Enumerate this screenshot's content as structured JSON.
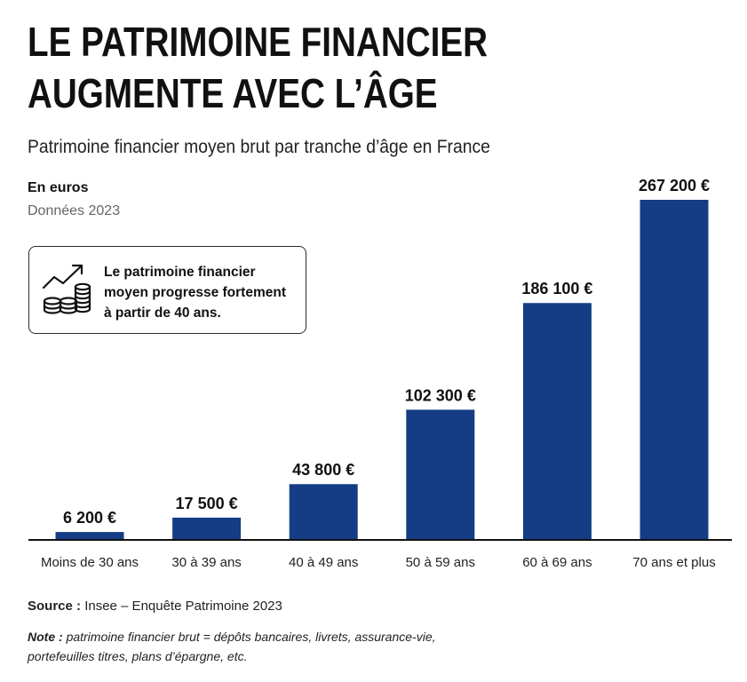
{
  "header": {
    "title_line1": "LE PATRIMOINE FINANCIER",
    "title_line2": "AUGMENTE AVEC L’ÂGE",
    "subtitle": "Patrimoine financier moyen brut par tranche d’âge en France",
    "unit": "En euros",
    "year_note": "Données 2023"
  },
  "callout": {
    "icon": "growth-chart-coins-icon",
    "line1": "Le patrimoine financier",
    "line2": "moyen progresse fortement",
    "line3": "à partir de 40 ans."
  },
  "chart_data": {
    "type": "bar",
    "categories": [
      "Moins de 30 ans",
      "30 à 39 ans",
      "40 à 49 ans",
      "50 à 59 ans",
      "60 à 69 ans",
      "70 ans et plus"
    ],
    "values": [
      6200,
      17500,
      43800,
      102300,
      186100,
      267200
    ],
    "value_labels": [
      "6 200 €",
      "17 500 €",
      "43 800 €",
      "102 300 €",
      "186 100 €",
      "267 200 €"
    ],
    "ylim": [
      0,
      267200
    ],
    "bar_color": "#143d86",
    "grid": false
  },
  "footer": {
    "source_label": "Source :",
    "source_text": "Insee – Enquête Patrimoine 2023",
    "note_label": "Note :",
    "note_text": "patrimoine financier brut = dépôts bancaires, livrets, assurance-vie, portefeuilles titres, plans d’épargne, etc."
  }
}
